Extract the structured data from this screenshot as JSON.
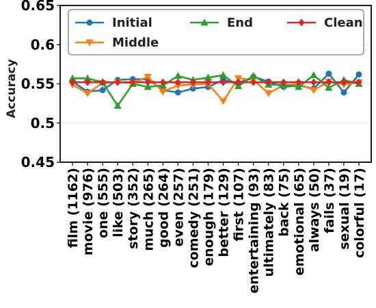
{
  "chart_data": {
    "type": "line",
    "title": "",
    "xlabel": "",
    "ylabel": "Accuracy",
    "ylim": [
      0.45,
      0.65
    ],
    "yticks": [
      "0.45",
      "0.5",
      "0.55",
      "0.6",
      "0.65"
    ],
    "ytick_values": [
      0.45,
      0.5,
      0.55,
      0.6,
      0.65
    ],
    "grid": "horizontal",
    "legend_position": "top",
    "categories": [
      "film (1162)",
      "movie (976)",
      "one (555)",
      "like (503)",
      "story (352)",
      "much (265)",
      "good (264)",
      "even (257)",
      "comedy (251)",
      "enough (179)",
      "better (129)",
      "first (107)",
      "entertaining (93)",
      "ultimately (83)",
      "back (75)",
      "emotional (65)",
      "always (50)",
      "fails (37)",
      "sexual (19)",
      "colorful (17)"
    ],
    "series": [
      {
        "name": "Initial",
        "color": "#1f77b4",
        "marker": "circle",
        "values": [
          0.553,
          0.54,
          0.542,
          0.555,
          0.556,
          0.556,
          0.542,
          0.539,
          0.544,
          0.546,
          0.555,
          0.551,
          0.559,
          0.553,
          0.546,
          0.548,
          0.544,
          0.563,
          0.539,
          0.562
        ]
      },
      {
        "name": "Middle",
        "color": "#ff7f0e",
        "marker": "triangle-down",
        "values": [
          0.549,
          0.538,
          0.551,
          0.552,
          0.551,
          0.559,
          0.54,
          0.548,
          0.549,
          0.55,
          0.528,
          0.557,
          0.555,
          0.538,
          0.548,
          0.55,
          0.542,
          0.553,
          0.549,
          0.552
        ]
      },
      {
        "name": "End",
        "color": "#2ca02c",
        "marker": "triangle-up",
        "values": [
          0.557,
          0.557,
          0.552,
          0.522,
          0.55,
          0.546,
          0.548,
          0.56,
          0.555,
          0.558,
          0.561,
          0.547,
          0.56,
          0.549,
          0.549,
          0.546,
          0.561,
          0.545,
          0.555,
          0.55
        ]
      },
      {
        "name": "Clean",
        "color": "#d62728",
        "marker": "diamond",
        "values": [
          0.552,
          0.552,
          0.552,
          0.552,
          0.552,
          0.552,
          0.552,
          0.552,
          0.552,
          0.552,
          0.552,
          0.552,
          0.552,
          0.552,
          0.552,
          0.552,
          0.552,
          0.552,
          0.552,
          0.552
        ]
      }
    ],
    "legend_order": [
      "Initial",
      "End",
      "Clean",
      "Middle"
    ]
  }
}
